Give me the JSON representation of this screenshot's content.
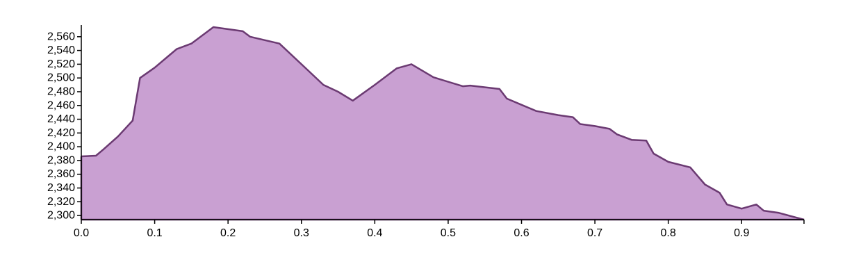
{
  "chart_data": {
    "type": "area",
    "title": "",
    "xlabel": "",
    "ylabel": "",
    "xlim": [
      0,
      0.985
    ],
    "ylim": [
      2294,
      2577
    ],
    "grid": false,
    "legend": "none",
    "colors": {
      "fill": "#c9a0d2",
      "stroke": "#6b3a72"
    },
    "x_ticks": [
      0.0,
      0.1,
      0.2,
      0.3,
      0.4,
      0.5,
      0.6,
      0.7,
      0.8,
      0.9
    ],
    "x_tick_labels": [
      "0.0",
      "0.1",
      "0.2",
      "0.3",
      "0.4",
      "0.5",
      "0.6",
      "0.7",
      "0.8",
      "0.9"
    ],
    "y_ticks": [
      2300,
      2320,
      2340,
      2360,
      2380,
      2400,
      2420,
      2440,
      2460,
      2480,
      2500,
      2520,
      2540,
      2560
    ],
    "y_tick_labels": [
      "2,300",
      "2,320",
      "2,340",
      "2,360",
      "2,380",
      "2,400",
      "2,420",
      "2,440",
      "2,460",
      "2,480",
      "2,500",
      "2,520",
      "2,540",
      "2,560"
    ],
    "series": [
      {
        "x": [
          0.0,
          0.02,
          0.03,
          0.05,
          0.07,
          0.08,
          0.1,
          0.12,
          0.13,
          0.15,
          0.18,
          0.22,
          0.23,
          0.27,
          0.3,
          0.33,
          0.35,
          0.37,
          0.4,
          0.43,
          0.45,
          0.48,
          0.52,
          0.53,
          0.57,
          0.58,
          0.6,
          0.62,
          0.65,
          0.67,
          0.68,
          0.7,
          0.72,
          0.73,
          0.75,
          0.77,
          0.78,
          0.8,
          0.83,
          0.85,
          0.87,
          0.88,
          0.9,
          0.92,
          0.93,
          0.95,
          0.985
        ],
        "values": [
          2386,
          2387,
          2396,
          2415,
          2438,
          2500,
          2515,
          2533,
          2542,
          2550,
          2574,
          2568,
          2560,
          2550,
          2520,
          2490,
          2480,
          2467,
          2490,
          2514,
          2520,
          2501,
          2488,
          2489,
          2484,
          2470,
          2461,
          2452,
          2446,
          2443,
          2433,
          2430,
          2426,
          2418,
          2410,
          2409,
          2390,
          2378,
          2370,
          2345,
          2333,
          2316,
          2310,
          2316,
          2307,
          2304,
          2294
        ]
      }
    ]
  }
}
